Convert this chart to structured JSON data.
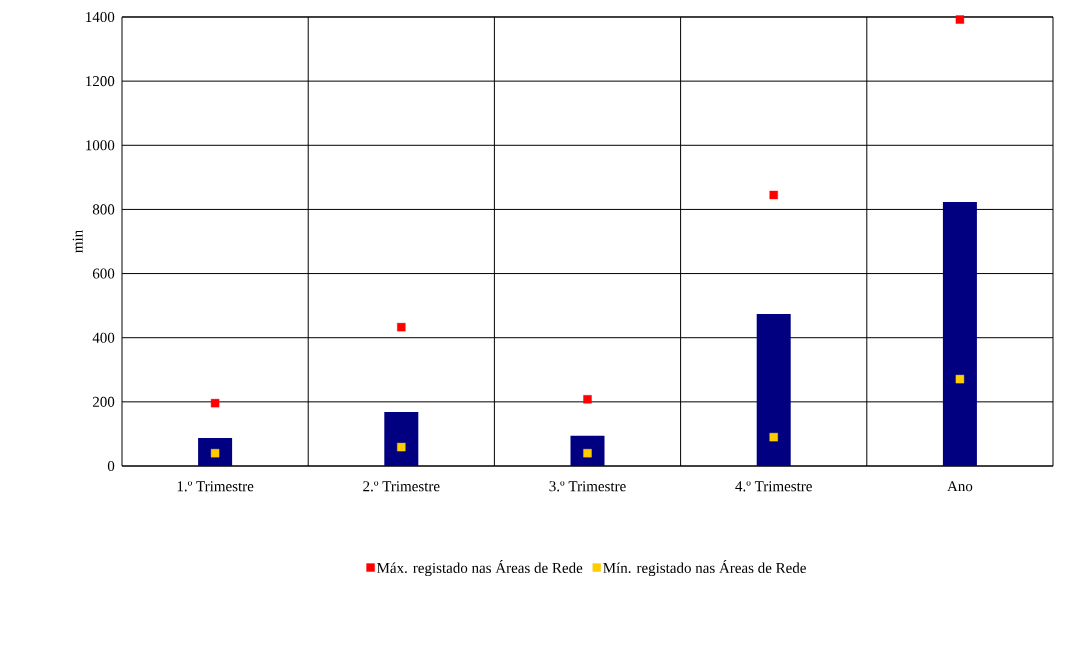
{
  "chart_data": {
    "type": "bar",
    "ylabel": "min",
    "categories": [
      "1.º Trimestre",
      "2.º Trimestre",
      "3.º Trimestre",
      "4.º Trimestre",
      "Ano"
    ],
    "series": [
      {
        "color": "#000080",
        "values": [
          87,
          168,
          94,
          474,
          823
        ]
      },
      {
        "type": "scatter",
        "name": "Máx. registado nas Áreas de Rede",
        "color": "#ff0000",
        "marker": "square",
        "values": [
          196,
          433,
          208,
          845,
          1392
        ]
      },
      {
        "type": "scatter",
        "name": "Mín. registado nas Áreas de Rede",
        "color": "#ffcc00",
        "marker": "square",
        "values": [
          40,
          59,
          40,
          90,
          271
        ]
      }
    ],
    "ylim": [
      0,
      1400
    ],
    "yticks": [
      0,
      200,
      400,
      600,
      800,
      1000,
      1200,
      1400
    ],
    "grid": true,
    "legend": "bottom"
  }
}
